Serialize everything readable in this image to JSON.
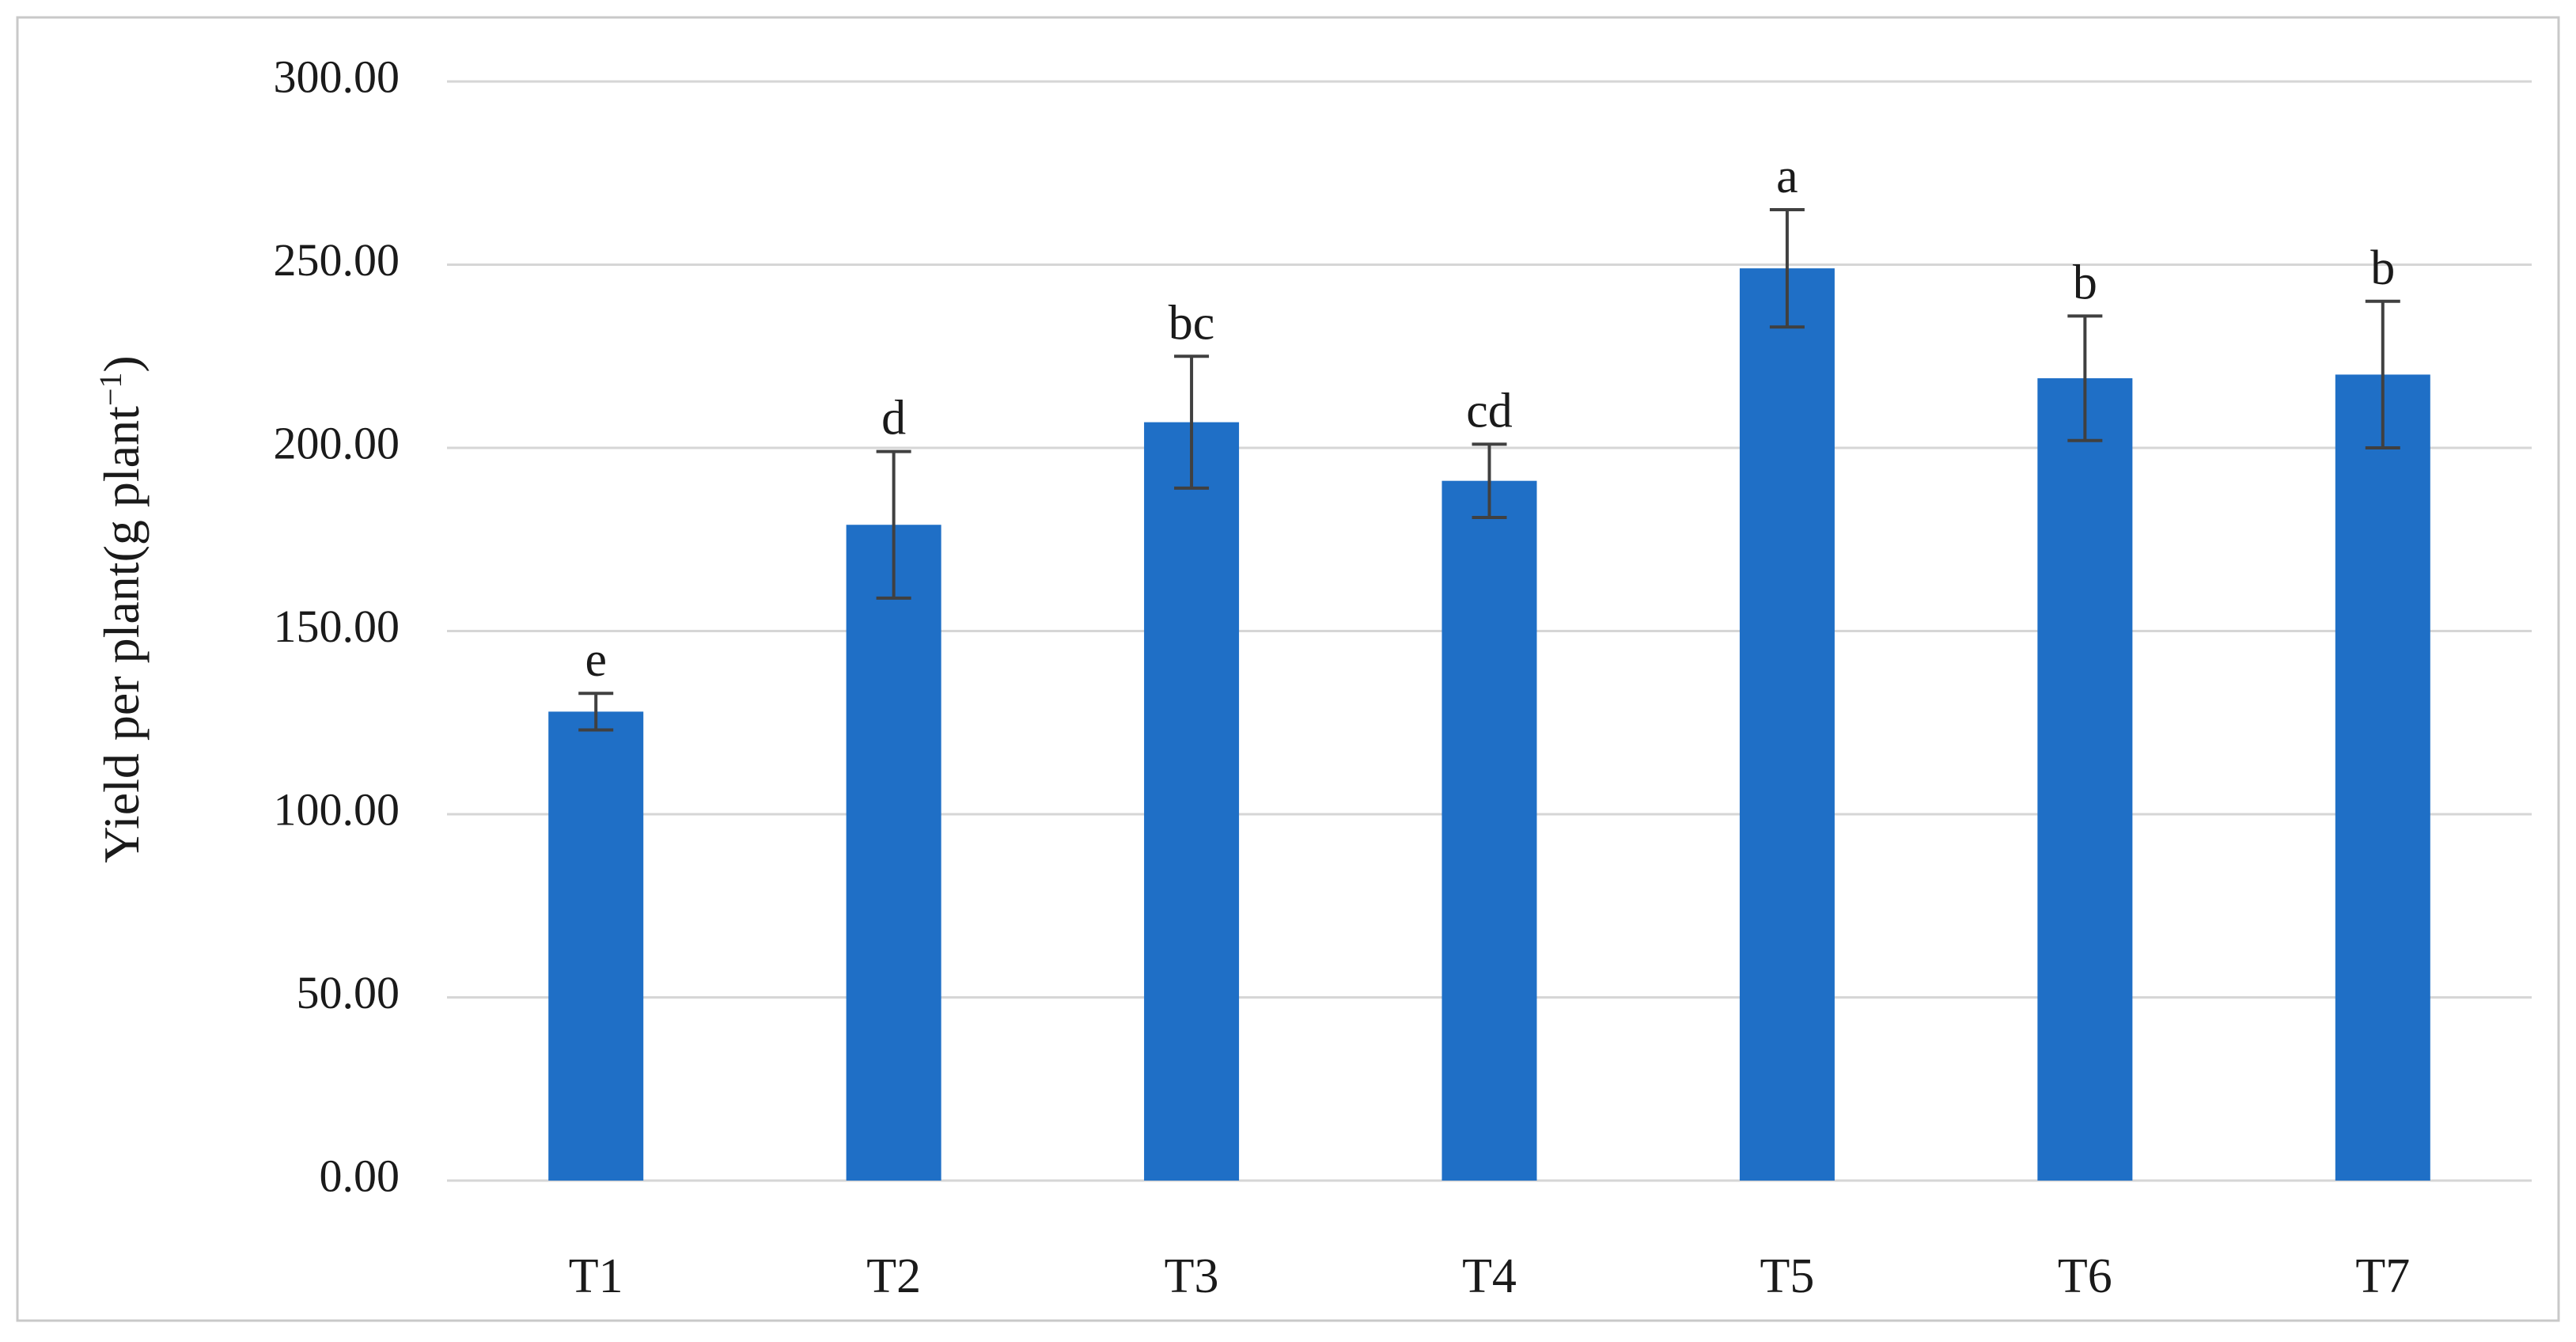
{
  "chart_data": {
    "type": "bar",
    "title": "",
    "xlabel": "",
    "ylabel": "Yield per plant(g plant",
    "ylabel_superscript": "−1",
    "ylabel_close": ")",
    "ylim": [
      0,
      300
    ],
    "y_ticks": [
      "0.00",
      "50.00",
      "100.00",
      "150.00",
      "200.00",
      "250.00",
      "300.00"
    ],
    "y_tick_values": [
      0,
      50,
      100,
      150,
      200,
      250,
      300
    ],
    "grid": true,
    "legend": "none",
    "bar_color": "#1f6fc6",
    "categories": [
      "T1",
      "T2",
      "T3",
      "T4",
      "T5",
      "T6",
      "T7"
    ],
    "values": [
      128,
      179,
      207,
      191,
      249,
      219,
      220
    ],
    "error": [
      5,
      20,
      18,
      10,
      16,
      17,
      20
    ],
    "significance_labels": [
      "e",
      "d",
      "bc",
      "cd",
      "a",
      "b",
      "b"
    ]
  }
}
